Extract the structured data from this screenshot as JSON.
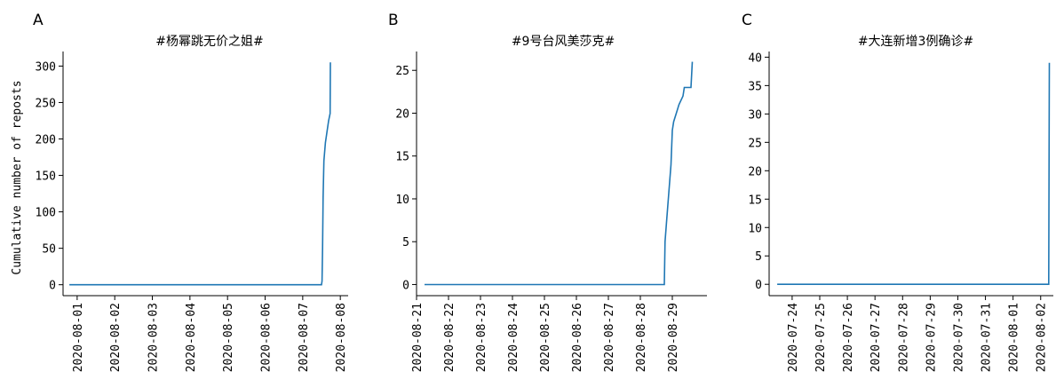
{
  "chart_data": [
    {
      "type": "line",
      "panel": "A",
      "title": "#杨幂跳无价之姐#",
      "ylabel": "Cumulative number of reposts",
      "xlabel": "",
      "ylim": [
        -15,
        320
      ],
      "yticks": [
        0,
        50,
        100,
        150,
        200,
        250,
        300
      ],
      "xlim": [
        "2020-07-31T15:00",
        "2020-08-08T05:00"
      ],
      "xticks": [
        "2020-08-01",
        "2020-08-02",
        "2020-08-03",
        "2020-08-04",
        "2020-08-05",
        "2020-08-06",
        "2020-08-07",
        "2020-08-08"
      ],
      "grid": false,
      "series": [
        {
          "color": "#1f77b4",
          "points": [
            [
              "2020-07-31T19:00",
              0
            ],
            [
              "2020-08-07T12:00",
              0
            ],
            [
              "2020-08-07T12:20",
              5
            ],
            [
              "2020-08-07T12:40",
              50
            ],
            [
              "2020-08-07T13:00",
              120
            ],
            [
              "2020-08-07T13:30",
              170
            ],
            [
              "2020-08-07T14:30",
              195
            ],
            [
              "2020-08-07T15:30",
              210
            ],
            [
              "2020-08-07T16:30",
              225
            ],
            [
              "2020-08-07T17:30",
              235
            ],
            [
              "2020-08-07T17:40",
              305
            ]
          ]
        }
      ]
    },
    {
      "type": "line",
      "panel": "B",
      "title": "#9号台风美莎克#",
      "ylabel": "",
      "xlabel": "",
      "ylim": [
        -1.3,
        27.2
      ],
      "yticks": [
        0,
        5,
        10,
        15,
        20,
        25
      ],
      "xlim": [
        "2020-08-21T00:00",
        "2020-08-30T02:00"
      ],
      "xticks": [
        "2020-08-21",
        "2020-08-22",
        "2020-08-23",
        "2020-08-24",
        "2020-08-25",
        "2020-08-26",
        "2020-08-27",
        "2020-08-28",
        "2020-08-29"
      ],
      "grid": false,
      "series": [
        {
          "color": "#1f77b4",
          "points": [
            [
              "2020-08-21T06:00",
              0
            ],
            [
              "2020-08-28T18:00",
              0
            ],
            [
              "2020-08-28T18:30",
              5
            ],
            [
              "2020-08-28T20:00",
              8
            ],
            [
              "2020-08-28T21:00",
              10
            ],
            [
              "2020-08-28T23:00",
              14
            ],
            [
              "2020-08-29T00:00",
              18
            ],
            [
              "2020-08-29T01:00",
              19
            ],
            [
              "2020-08-29T03:00",
              20
            ],
            [
              "2020-08-29T05:00",
              21
            ],
            [
              "2020-08-29T08:00",
              22
            ],
            [
              "2020-08-29T09:00",
              23
            ],
            [
              "2020-08-29T14:00",
              23
            ],
            [
              "2020-08-29T15:00",
              26
            ]
          ]
        }
      ]
    },
    {
      "type": "line",
      "panel": "C",
      "title": "#大连新增3例确诊#",
      "ylabel": "",
      "xlabel": "",
      "ylim": [
        -2,
        41
      ],
      "yticks": [
        0,
        5,
        10,
        15,
        20,
        25,
        30,
        35,
        40
      ],
      "xlim": [
        "2020-07-23T04:00",
        "2020-08-02T11:00"
      ],
      "xticks": [
        "2020-07-24",
        "2020-07-25",
        "2020-07-26",
        "2020-07-27",
        "2020-07-28",
        "2020-07-29",
        "2020-07-30",
        "2020-07-31",
        "2020-08-01",
        "2020-08-02"
      ],
      "grid": false,
      "series": [
        {
          "color": "#1f77b4",
          "points": [
            [
              "2020-07-23T11:00",
              0
            ],
            [
              "2020-08-02T07:00",
              0
            ],
            [
              "2020-08-02T07:30",
              39
            ]
          ]
        }
      ]
    }
  ]
}
